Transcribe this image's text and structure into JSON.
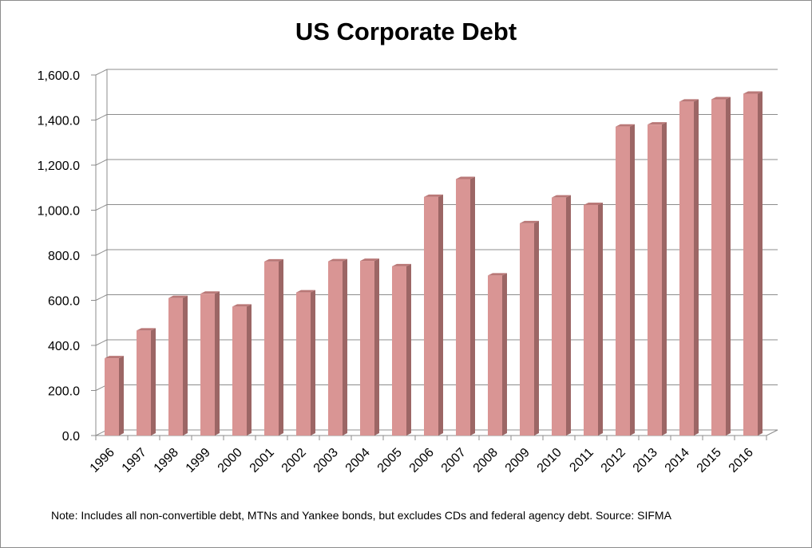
{
  "chart_data": {
    "type": "bar",
    "title": "US Corporate Debt",
    "xlabel": "",
    "ylabel": "",
    "categories": [
      "1996",
      "1997",
      "1998",
      "1999",
      "2000",
      "2001",
      "2002",
      "2003",
      "2004",
      "2005",
      "2006",
      "2007",
      "2008",
      "2009",
      "2010",
      "2011",
      "2012",
      "2013",
      "2014",
      "2015",
      "2016"
    ],
    "values": [
      343,
      466,
      610,
      629,
      572,
      772,
      635,
      773,
      775,
      751,
      1059,
      1138,
      710,
      942,
      1056,
      1023,
      1371,
      1380,
      1482,
      1492,
      1517
    ],
    "ylim": [
      0,
      1600
    ],
    "yticks": [
      0,
      200,
      400,
      600,
      800,
      1000,
      1200,
      1400,
      1600
    ],
    "ytick_labels": [
      "0.0",
      "200.0",
      "400.0",
      "600.0",
      "800.0",
      "1,000.0",
      "1,200.0",
      "1,400.0",
      "1,600.0"
    ],
    "grid": true,
    "legend": "none",
    "bar_color": "#d99594",
    "bar_side_color": "#9c6665",
    "bar_top_color": "#b97877",
    "note": "Note: Includes all non-convertible debt, MTNs and Yankee bonds, but excludes CDs and federal agency debt. Source: SIFMA"
  }
}
